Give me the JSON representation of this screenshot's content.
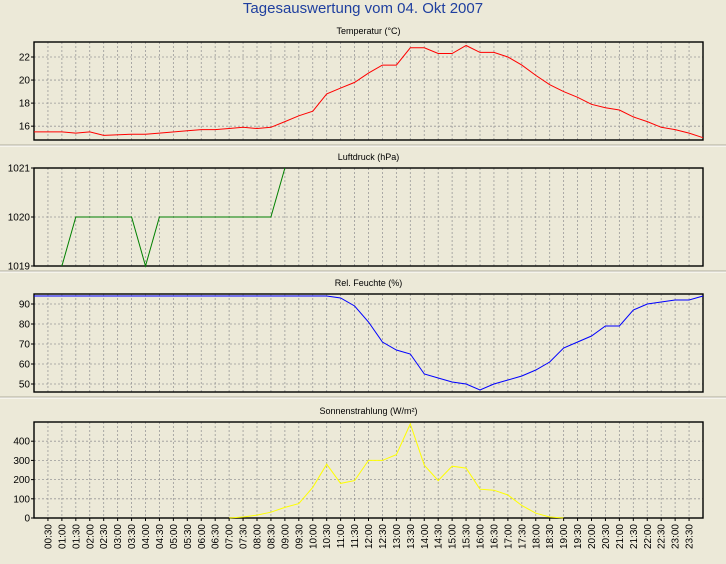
{
  "window": {
    "title": "Tagesauswertung vom 04. Okt 2007"
  },
  "colors": {
    "background": "#ece9d8",
    "temperature": "#ff0000",
    "pressure": "#008000",
    "humidity": "#0000ff",
    "solar": "#ffff00",
    "title": "#1f3f9f",
    "grid": "#999999"
  },
  "x_axis": {
    "tick_labels": [
      "00:30",
      "01:00",
      "01:30",
      "02:00",
      "02:30",
      "03:00",
      "03:30",
      "04:00",
      "04:30",
      "05:00",
      "05:30",
      "06:00",
      "06:30",
      "07:00",
      "07:30",
      "08:00",
      "08:30",
      "09:00",
      "09:30",
      "10:00",
      "10:30",
      "11:00",
      "11:30",
      "12:00",
      "12:30",
      "13:00",
      "13:30",
      "14:00",
      "14:30",
      "15:00",
      "15:30",
      "16:00",
      "16:30",
      "17:00",
      "17:30",
      "18:00",
      "18:30",
      "19:00",
      "19:30",
      "20:00",
      "20:30",
      "21:00",
      "21:30",
      "22:00",
      "22:30",
      "23:00",
      "23:30"
    ]
  },
  "chart_data": [
    {
      "type": "line",
      "title": "Temperatur (°C)",
      "ylim": [
        14.8,
        23.3
      ],
      "yticks": [
        16,
        18,
        20,
        22
      ],
      "ytick_labels": [
        "16",
        "18",
        "20",
        "22"
      ],
      "series": [
        {
          "color": "#ff0000",
          "values": [
            [
              0,
              15.5
            ],
            [
              2,
              15.5
            ],
            [
              3,
              15.4
            ],
            [
              4,
              15.5
            ],
            [
              5,
              15.2
            ],
            [
              7,
              15.3
            ],
            [
              8,
              15.3
            ],
            [
              9,
              15.4
            ],
            [
              11,
              15.6
            ],
            [
              12,
              15.7
            ],
            [
              13,
              15.7
            ],
            [
              14,
              15.8
            ],
            [
              15,
              15.9
            ],
            [
              16,
              15.8
            ],
            [
              17,
              15.9
            ],
            [
              18,
              16.4
            ],
            [
              19,
              16.9
            ],
            [
              20,
              17.3
            ],
            [
              21,
              18.8
            ],
            [
              22,
              19.3
            ],
            [
              23,
              19.8
            ],
            [
              24,
              20.6
            ],
            [
              25,
              21.3
            ],
            [
              26,
              21.3
            ],
            [
              27,
              22.8
            ],
            [
              28,
              22.8
            ],
            [
              29,
              22.3
            ],
            [
              30,
              22.3
            ],
            [
              31,
              23.0
            ],
            [
              32,
              22.4
            ],
            [
              33,
              22.4
            ],
            [
              34,
              22.0
            ],
            [
              35,
              21.3
            ],
            [
              36,
              20.4
            ],
            [
              37,
              19.6
            ],
            [
              38,
              19.0
            ],
            [
              39,
              18.5
            ],
            [
              40,
              17.9
            ],
            [
              41,
              17.6
            ],
            [
              42,
              17.4
            ],
            [
              43,
              16.8
            ],
            [
              44,
              16.4
            ],
            [
              45,
              15.9
            ],
            [
              46,
              15.7
            ],
            [
              47,
              15.4
            ],
            [
              48,
              15.0
            ]
          ]
        }
      ]
    },
    {
      "type": "line",
      "title": "Luftdruck (hPa)",
      "ylim": [
        1019,
        1021
      ],
      "yticks": [
        1019,
        1020,
        1021
      ],
      "ytick_labels": [
        "1019",
        "1020",
        "1021"
      ],
      "series": [
        {
          "color": "#008000",
          "values": [
            [
              2,
              1019
            ],
            [
              3,
              1020
            ],
            [
              7,
              1020
            ],
            [
              8,
              1019
            ],
            [
              9,
              1020
            ],
            [
              17,
              1020
            ],
            [
              18,
              1021
            ]
          ]
        }
      ]
    },
    {
      "type": "line",
      "title": "Rel. Feuchte (%)",
      "ylim": [
        46,
        95
      ],
      "yticks": [
        50,
        60,
        70,
        80,
        90
      ],
      "ytick_labels": [
        "50",
        "60",
        "70",
        "80",
        "90"
      ],
      "series": [
        {
          "color": "#0000ff",
          "values": [
            [
              0,
              94
            ],
            [
              21,
              94
            ],
            [
              22,
              93
            ],
            [
              23,
              89
            ],
            [
              24,
              81
            ],
            [
              25,
              71
            ],
            [
              26,
              67
            ],
            [
              27,
              65
            ],
            [
              28,
              55
            ],
            [
              29,
              53
            ],
            [
              30,
              51
            ],
            [
              31,
              50
            ],
            [
              32,
              47
            ],
            [
              33,
              50
            ],
            [
              34,
              52
            ],
            [
              35,
              54
            ],
            [
              36,
              57
            ],
            [
              37,
              61
            ],
            [
              38,
              68
            ],
            [
              39,
              71
            ],
            [
              40,
              74
            ],
            [
              41,
              79
            ],
            [
              42,
              79
            ],
            [
              43,
              87
            ],
            [
              44,
              90
            ],
            [
              45,
              91
            ],
            [
              46,
              92
            ],
            [
              47,
              92
            ],
            [
              48,
              94
            ]
          ]
        }
      ]
    },
    {
      "type": "line",
      "title": "Sonnenstrahlung (W/m²)",
      "ylim": [
        0,
        500
      ],
      "yticks": [
        0,
        100,
        200,
        300,
        400
      ],
      "ytick_labels": [
        "0",
        "100",
        "200",
        "300",
        "400"
      ],
      "series": [
        {
          "color": "#ffff00",
          "values": [
            [
              14,
              0
            ],
            [
              15,
              5
            ],
            [
              16,
              15
            ],
            [
              17,
              30
            ],
            [
              18,
              55
            ],
            [
              19,
              75
            ],
            [
              20,
              160
            ],
            [
              21,
              280
            ],
            [
              22,
              180
            ],
            [
              23,
              195
            ],
            [
              24,
              300
            ],
            [
              25,
              300
            ],
            [
              26,
              330
            ],
            [
              27,
              490
            ],
            [
              28,
              275
            ],
            [
              29,
              195
            ],
            [
              30,
              270
            ],
            [
              31,
              260
            ],
            [
              32,
              150
            ],
            [
              33,
              145
            ],
            [
              34,
              120
            ],
            [
              35,
              65
            ],
            [
              36,
              25
            ],
            [
              37,
              5
            ],
            [
              38,
              0
            ]
          ]
        }
      ]
    }
  ]
}
